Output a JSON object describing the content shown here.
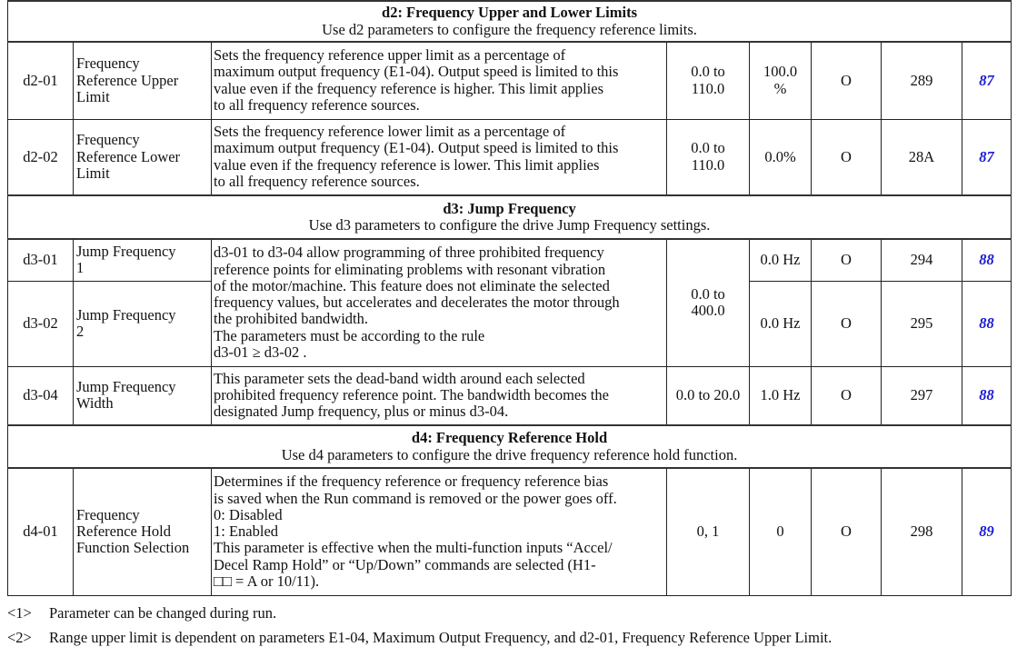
{
  "sections": [
    {
      "title": "d2: Frequency Upper and Lower Limits",
      "subtitle": "Use d2 parameters to configure the frequency reference limits.",
      "rows": [
        {
          "no": "d2-01",
          "name": [
            "Frequency",
            "Reference Upper",
            "Limit"
          ],
          "desc": [
            "Sets the frequency reference upper limit as a percentage of",
            "maximum output frequency (E1-04). Output speed is limited to this",
            "value even if the frequency reference is higher. This limit applies",
            "to all frequency reference sources."
          ],
          "range": [
            "0.0 to",
            "110.0"
          ],
          "default": [
            "100.0",
            "%"
          ],
          "change": "O",
          "addr": "289",
          "page": "87"
        },
        {
          "no": "d2-02",
          "name": [
            "Frequency",
            "Reference Lower",
            "Limit"
          ],
          "desc": [
            "Sets the frequency reference lower limit as a percentage of",
            "maximum output frequency (E1-04). Output speed is limited to this",
            "value even if the frequency reference is lower. This limit applies",
            "to all frequency reference sources."
          ],
          "range": [
            "0.0 to",
            "110.0"
          ],
          "default": [
            "0.0%"
          ],
          "change": "O",
          "addr": "28A",
          "page": "87"
        }
      ]
    },
    {
      "title": "d3: Jump Frequency",
      "subtitle": "Use d3 parameters to configure the drive Jump Frequency settings.",
      "rows": [
        {
          "no": "d3-01",
          "name": [
            "Jump Frequency",
            "1"
          ],
          "desc": [
            "d3-01 to d3-04 allow programming of three prohibited frequency",
            "reference points for eliminating problems with resonant vibration",
            "of the motor/machine. This feature does not eliminate the selected",
            "frequency values, but accelerates and decelerates the motor through",
            "the prohibited bandwidth.",
            "The parameters must be according to the rule",
            "d3-01 ≥ d3-02 ."
          ],
          "range": [
            "0.0 to",
            "400.0"
          ],
          "default": [
            "0.0 Hz"
          ],
          "change": "O",
          "addr": "294",
          "page": "88"
        },
        {
          "no": "d3-02",
          "name": [
            "Jump Frequency",
            "2"
          ],
          "default": [
            "0.0 Hz"
          ],
          "change": "O",
          "addr": "295",
          "page": "88"
        },
        {
          "no": "d3-04",
          "name": [
            "Jump Frequency",
            "Width"
          ],
          "desc": [
            "This parameter sets the dead-band width around each selected",
            "prohibited frequency reference point. The bandwidth becomes the",
            "designated Jump frequency, plus or minus d3-04."
          ],
          "range": [
            "0.0 to 20.0"
          ],
          "default": [
            "1.0 Hz"
          ],
          "change": "O",
          "addr": "297",
          "page": "88"
        }
      ]
    },
    {
      "title": "d4: Frequency Reference Hold",
      "subtitle": "Use d4 parameters to configure the drive frequency reference hold function.",
      "rows": [
        {
          "no": "d4-01",
          "name": [
            "Frequency",
            "Reference Hold",
            "Function Selection"
          ],
          "desc": [
            "Determines if the frequency reference or frequency reference bias",
            "is saved when the Run command is removed or the power goes off.",
            "0: Disabled",
            "1: Enabled",
            "This parameter is effective when the multi-function inputs “Accel/",
            "Decel Ramp Hold” or “Up/Down” commands are selected (H1-",
            "□□ = A or 10/11)."
          ],
          "range": [
            "0, 1"
          ],
          "default": [
            "0"
          ],
          "change": "O",
          "addr": "298",
          "page": "89"
        }
      ]
    }
  ],
  "footnotes": [
    {
      "tag": "<1>",
      "text": "Parameter can be changed during run."
    },
    {
      "tag": "<2>",
      "text": "Range upper limit is dependent on parameters E1-04, Maximum Output Frequency, and d2-01, Frequency Reference Upper Limit."
    }
  ]
}
